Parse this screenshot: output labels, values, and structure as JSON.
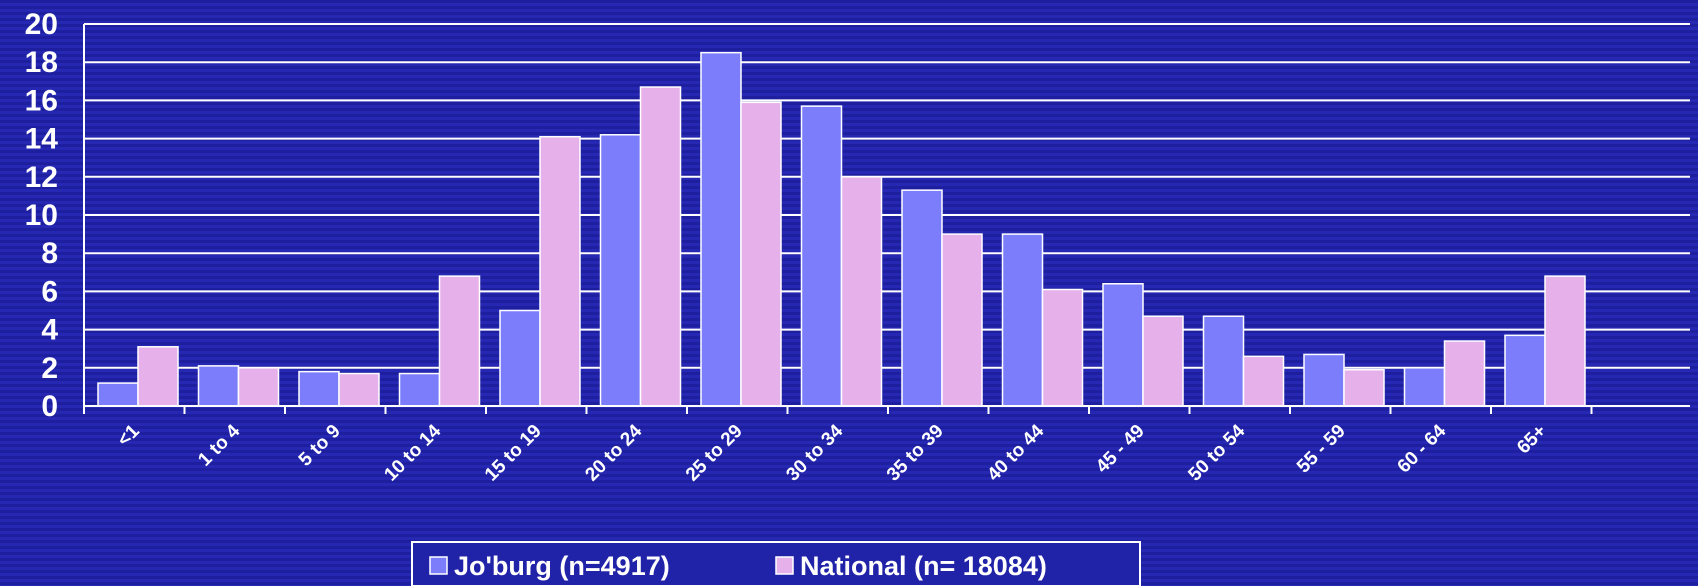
{
  "colors": {
    "background": "#2022a8",
    "grid": "#ffffff",
    "text": "#ffffff",
    "series_joburg": "#7b7dfa",
    "series_national": "#e6b0ea"
  },
  "chart_data": {
    "type": "bar",
    "title": "",
    "xlabel": "",
    "ylabel": "",
    "ylim": [
      0,
      20
    ],
    "yticks": [
      "0",
      "2",
      "4",
      "6",
      "8",
      "10",
      "12",
      "14",
      "16",
      "18",
      "20"
    ],
    "grid": true,
    "legend_position": "bottom",
    "categories": [
      "<1",
      "1 to 4",
      "5 to 9",
      "10 to 14",
      "15 to 19",
      "20 to 24",
      "25 to 29",
      "30 to 34",
      "35 to 39",
      "40 to 44",
      "45 - 49",
      "50 to 54",
      "55 - 59",
      "60 - 64",
      "65+"
    ],
    "series": [
      {
        "name": "Jo'burg (n=4917)",
        "values": [
          1.2,
          2.1,
          1.8,
          1.7,
          5.0,
          14.2,
          18.5,
          15.7,
          11.3,
          9.0,
          6.4,
          4.7,
          2.7,
          2.0,
          3.7
        ]
      },
      {
        "name": "National (n= 18084)",
        "values": [
          3.1,
          2.0,
          1.7,
          6.8,
          14.1,
          16.7,
          15.9,
          12.0,
          9.0,
          6.1,
          4.7,
          2.6,
          1.9,
          3.4,
          6.8
        ]
      }
    ]
  }
}
